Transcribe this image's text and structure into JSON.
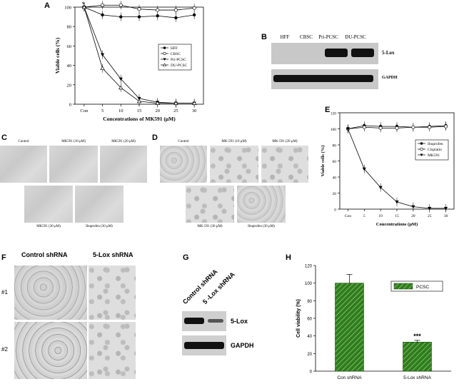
{
  "panel_letters": {
    "a": "A",
    "b": "B",
    "c": "C",
    "d": "D",
    "e": "E",
    "f": "F",
    "g": "G",
    "h": "H"
  },
  "chart_data": [
    {
      "type": "line",
      "panel": "A",
      "categories": [
        "Con",
        "5",
        "10",
        "15",
        "20",
        "25",
        "30"
      ],
      "series": [
        {
          "name": "HFF",
          "values": [
            100,
            92,
            90,
            90,
            91,
            89,
            92
          ]
        },
        {
          "name": "CBSC",
          "values": [
            100,
            102,
            102,
            98,
            97,
            97,
            99
          ]
        },
        {
          "name": "Pri-PCSC",
          "values": [
            100,
            51,
            26,
            6,
            2,
            1,
            1
          ]
        },
        {
          "name": "DU-PCSC",
          "values": [
            100,
            37,
            17,
            3,
            1,
            1,
            1
          ]
        }
      ],
      "annotation": "*",
      "xlabel": "Concentrations of MK591 (μM)",
      "ylabel": "Viable cells (%)",
      "yticks": [
        "0",
        "20",
        "40",
        "60",
        "80",
        "100"
      ],
      "ylim": [
        0,
        100
      ]
    },
    {
      "type": "line",
      "panel": "E",
      "categories": [
        "Con",
        "5",
        "10",
        "15",
        "20",
        "25",
        "30"
      ],
      "series": [
        {
          "name": "Ibuprofen",
          "values": [
            100,
            104,
            103,
            103,
            102,
            103,
            104
          ]
        },
        {
          "name": "Cisplatin",
          "values": [
            100,
            102,
            101,
            101,
            102,
            102,
            103
          ]
        },
        {
          "name": "MK591",
          "values": [
            100,
            50,
            27,
            9,
            3,
            1,
            1
          ]
        }
      ],
      "xlabel": "Concentrations (μM)",
      "ylabel": "Viable cells (%)",
      "yticks": [
        "0",
        "20",
        "40",
        "60",
        "80",
        "100",
        "120"
      ],
      "ylim": [
        0,
        120
      ]
    },
    {
      "type": "bar",
      "panel": "H",
      "categories": [
        "Con shRNA",
        "5-Lox shRNA"
      ],
      "series": [
        {
          "name": "PCSC",
          "values": [
            100,
            33
          ]
        }
      ],
      "errors": [
        10,
        2
      ],
      "annotation": "***",
      "ylabel": "Cell viability (%)",
      "yticks": [
        "0",
        "20",
        "40",
        "60",
        "80",
        "100",
        "120"
      ],
      "ylim": [
        0,
        120
      ]
    }
  ],
  "blot_b": {
    "lanes": [
      "HFF",
      "CBSC",
      "Pri-PCSC",
      "DU-PCSC"
    ],
    "row1": "5-Lox",
    "row2": "GAPDH"
  },
  "panel_c": {
    "control": "Control",
    "mk10": "MK591 (10 μM)",
    "mk20": "MK591 (20 μM)",
    "mk30": "MK591 (30 μM)",
    "ibu": "Ibuprofen (30 μM)"
  },
  "panel_d": {
    "control": "Control",
    "mk10": "MK-591 (10 μM)",
    "mk20": "MK-591 (20 μM)",
    "mk30": "MK-591 (30 μM)",
    "ibu": "Ibuprofen (30 μM)"
  },
  "panel_f": {
    "col1": "Control shRNA",
    "col2": "5-Lox shRNA",
    "row1": "#1",
    "row2": "#2"
  },
  "blot_g": {
    "lanes": [
      "Control shRNA",
      "5 -Lox shRNA"
    ],
    "row1": "5-Lox",
    "row2": "GAPDH"
  }
}
